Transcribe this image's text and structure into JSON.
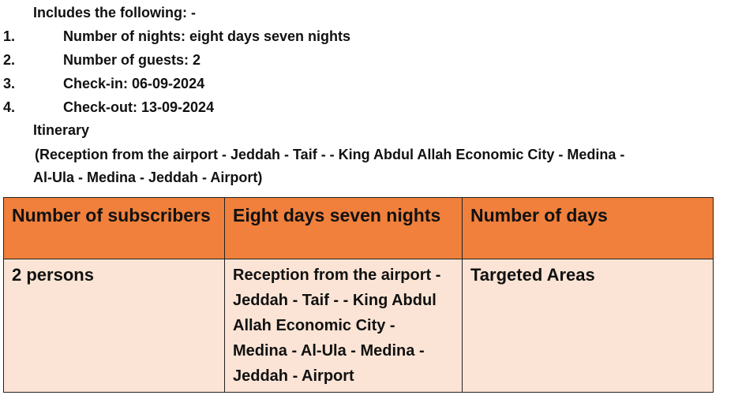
{
  "intro": "Includes the following: -",
  "list": [
    {
      "num": "1.",
      "text": "Number of nights: eight days seven nights"
    },
    {
      "num": "2.",
      "text": "Number of guests: 2"
    },
    {
      "num": "3.",
      "text": "Check-in: 06-09-2024"
    },
    {
      "num": "4.",
      "text": "Check-out: 13-09-2024"
    }
  ],
  "itinerary_label": "Itinerary",
  "itinerary_line1": "(Reception from the airport - Jeddah - Taif - - King Abdul Allah Economic City - Medina -",
  "itinerary_line2": "Al-Ula - Medina - Jeddah - Airport)",
  "table": {
    "colors": {
      "header": "#F0803C",
      "body": "#FBE4D5"
    },
    "header": [
      "Number of subscribers",
      "Eight days seven nights",
      "Number of days"
    ],
    "row": [
      "2 persons",
      "Reception from the airport - Jeddah - Taif - - King Abdul Allah Economic City - Medina  - Al-Ula - Medina - Jeddah - Airport",
      "Targeted Areas"
    ]
  }
}
